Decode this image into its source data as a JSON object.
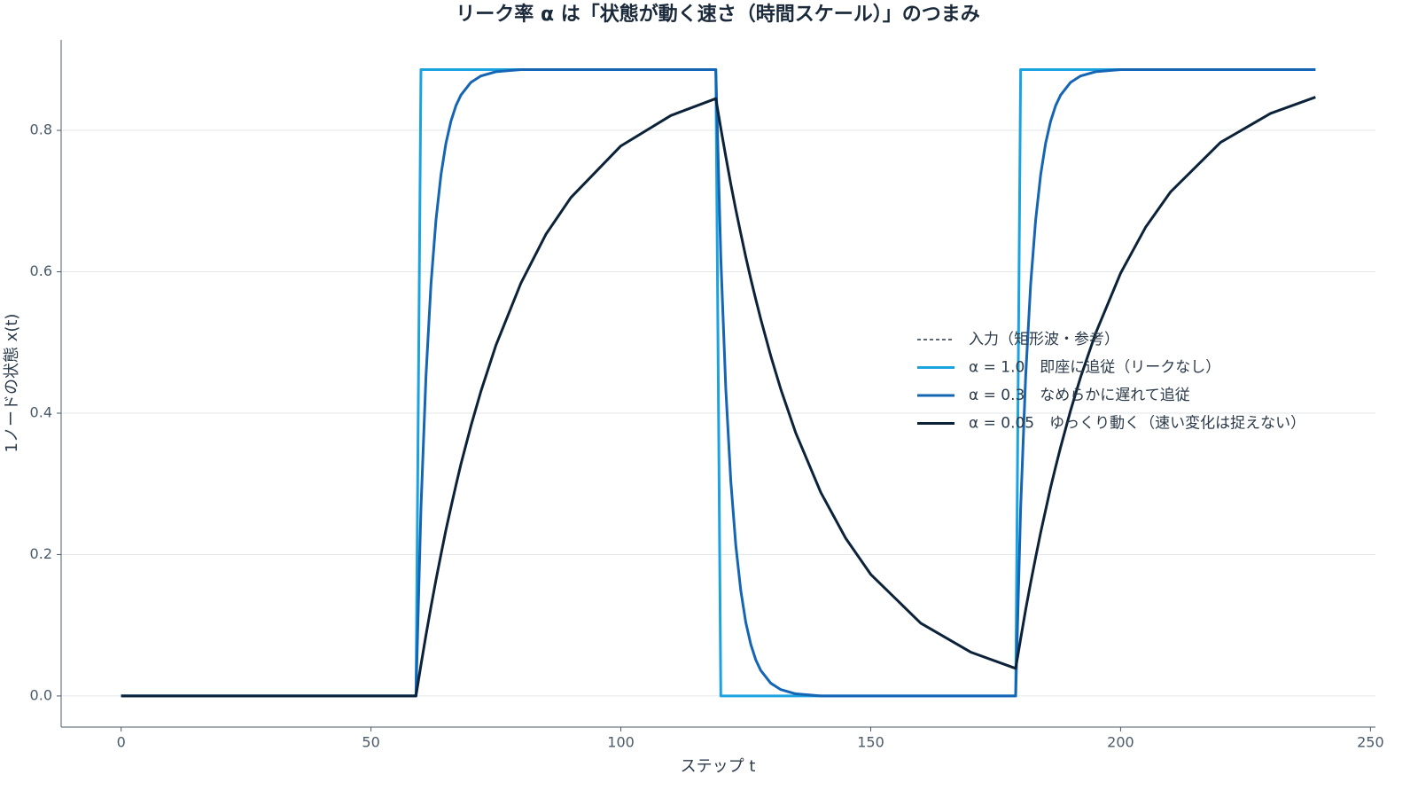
{
  "chart_data": {
    "type": "line",
    "title": "リーク率 α は「状態が動く速さ（時間スケール）」のつまみ",
    "x_label": "ステップ t",
    "y_label": "1ノードの状態 x(t)",
    "xlim": [
      -12,
      251
    ],
    "ylim": [
      -0.044,
      0.928
    ],
    "xticks": [
      0,
      50,
      100,
      150,
      200,
      250
    ],
    "yticks": [
      {
        "value": 0,
        "label": "0.0"
      },
      {
        "value": 0.2,
        "label": "0.2"
      },
      {
        "value": 0.4,
        "label": "0.4"
      },
      {
        "value": 0.6,
        "label": "0.6"
      },
      {
        "value": 0.8,
        "label": "0.8"
      }
    ],
    "grid": true,
    "legend": "right",
    "x": [
      0,
      59,
      60,
      61,
      62,
      63,
      64,
      65,
      66,
      67,
      68,
      70,
      72,
      75,
      80,
      85,
      90,
      100,
      110,
      119,
      120,
      121,
      122,
      123,
      124,
      125,
      126,
      127,
      128,
      130,
      132,
      135,
      140,
      145,
      150,
      160,
      170,
      179,
      180,
      181,
      182,
      183,
      184,
      185,
      186,
      187,
      188,
      190,
      192,
      195,
      200,
      205,
      210,
      220,
      230,
      239
    ],
    "series": [
      {
        "name": "入力（矩形波・参考）",
        "color": "#2a3848",
        "dashed": true,
        "values": [
          0,
          0,
          0.886,
          0.886,
          0.886,
          0.886,
          0.886,
          0.886,
          0.886,
          0.886,
          0.886,
          0.886,
          0.886,
          0.886,
          0.886,
          0.886,
          0.886,
          0.886,
          0.886,
          0.886,
          0,
          0,
          0,
          0,
          0,
          0,
          0,
          0,
          0,
          0,
          0,
          0,
          0,
          0,
          0,
          0,
          0,
          0,
          0.886,
          0.886,
          0.886,
          0.886,
          0.886,
          0.886,
          0.886,
          0.886,
          0.886,
          0.886,
          0.886,
          0.886,
          0.886,
          0.886,
          0.886,
          0.886,
          0.886,
          0.886
        ]
      },
      {
        "name": "α = 1.0　即座に追従（リークなし）",
        "color": "#1aa3e0",
        "values": [
          0,
          0,
          0.886,
          0.886,
          0.886,
          0.886,
          0.886,
          0.886,
          0.886,
          0.886,
          0.886,
          0.886,
          0.886,
          0.886,
          0.886,
          0.886,
          0.886,
          0.886,
          0.886,
          0.886,
          0,
          0,
          0,
          0,
          0,
          0,
          0,
          0,
          0,
          0,
          0,
          0,
          0,
          0,
          0,
          0,
          0,
          0,
          0.886,
          0.886,
          0.886,
          0.886,
          0.886,
          0.886,
          0.886,
          0.886,
          0.886,
          0.886,
          0.886,
          0.886,
          0.886,
          0.886,
          0.886,
          0.886,
          0.886,
          0.886
        ]
      },
      {
        "name": "α = 0.3　なめらかに遅れて追従",
        "color": "#1565b5",
        "values": [
          0,
          0,
          0.266,
          0.452,
          0.582,
          0.673,
          0.737,
          0.782,
          0.813,
          0.835,
          0.85,
          0.868,
          0.877,
          0.883,
          0.886,
          0.886,
          0.886,
          0.886,
          0.886,
          0.886,
          0.62,
          0.434,
          0.304,
          0.213,
          0.149,
          0.104,
          0.073,
          0.051,
          0.036,
          0.018,
          0.009,
          0.003,
          0,
          0,
          0,
          0,
          0,
          0,
          0.266,
          0.452,
          0.582,
          0.673,
          0.737,
          0.782,
          0.813,
          0.835,
          0.85,
          0.868,
          0.877,
          0.883,
          0.886,
          0.886,
          0.886,
          0.886,
          0.886,
          0.886
        ]
      },
      {
        "name": "α = 0.05　ゆっくり動く（速い変化は捉えない）",
        "color": "#0b2239",
        "values": [
          0,
          0,
          0.044,
          0.086,
          0.126,
          0.164,
          0.2,
          0.235,
          0.267,
          0.298,
          0.328,
          0.382,
          0.431,
          0.496,
          0.584,
          0.653,
          0.705,
          0.778,
          0.821,
          0.845,
          0.803,
          0.763,
          0.724,
          0.688,
          0.654,
          0.621,
          0.59,
          0.561,
          0.533,
          0.481,
          0.434,
          0.372,
          0.288,
          0.223,
          0.172,
          0.103,
          0.062,
          0.039,
          0.081,
          0.122,
          0.16,
          0.196,
          0.231,
          0.263,
          0.295,
          0.324,
          0.352,
          0.404,
          0.451,
          0.513,
          0.598,
          0.663,
          0.713,
          0.783,
          0.824,
          0.847
        ]
      }
    ]
  }
}
